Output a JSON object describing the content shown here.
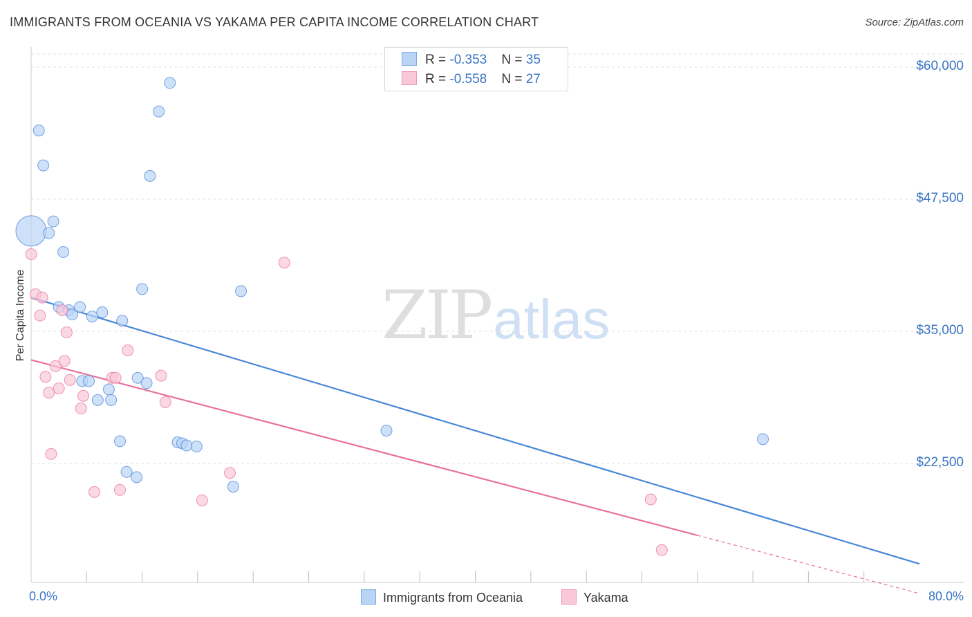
{
  "header": {
    "title": "IMMIGRANTS FROM OCEANIA VS YAKAMA PER CAPITA INCOME CORRELATION CHART",
    "source": "Source: ZipAtlas.com"
  },
  "watermark": {
    "zip": "ZIP",
    "atlas": "atlas"
  },
  "stats": [
    {
      "r_label": "R = ",
      "r_value": "-0.353",
      "n_label": "N = ",
      "n_value": "35",
      "color": "#4a86d8"
    },
    {
      "r_label": "R = ",
      "r_value": "-0.558",
      "n_label": "N = ",
      "n_value": "27",
      "color": "#e8719a"
    }
  ],
  "legend": {
    "series1": "Immigrants from Oceania",
    "series2": "Yakama"
  },
  "chart_data": {
    "type": "scatter",
    "title": "IMMIGRANTS FROM OCEANIA VS YAKAMA PER CAPITA INCOME CORRELATION CHART",
    "xlabel": "",
    "ylabel": "Per Capita Income",
    "xlim": [
      0,
      80
    ],
    "ylim": [
      12000,
      62000
    ],
    "x_tick_labels": [
      "0.0%",
      "80.0%"
    ],
    "y_ticks": [
      {
        "value": 60000,
        "label": "$60,000"
      },
      {
        "value": 47500,
        "label": "$47,500"
      },
      {
        "value": 35000,
        "label": "$35,000"
      },
      {
        "value": 22500,
        "label": "$22,500"
      }
    ],
    "grid": true,
    "series": [
      {
        "name": "Immigrants from Oceania",
        "color": "#4a86d8",
        "fill": "#b9d4f5",
        "trend": {
          "x1": 0.0,
          "y1": 38200,
          "x2": 80.0,
          "y2": 13000
        },
        "points": [
          {
            "x": 0.0,
            "y": 44500,
            "big": true
          },
          {
            "x": 0.7,
            "y": 54000
          },
          {
            "x": 1.1,
            "y": 50700
          },
          {
            "x": 1.6,
            "y": 44300
          },
          {
            "x": 2.0,
            "y": 45400
          },
          {
            "x": 2.5,
            "y": 37300
          },
          {
            "x": 2.9,
            "y": 42500
          },
          {
            "x": 3.4,
            "y": 37000
          },
          {
            "x": 3.7,
            "y": 36600
          },
          {
            "x": 4.4,
            "y": 37300
          },
          {
            "x": 4.6,
            "y": 30300
          },
          {
            "x": 5.2,
            "y": 30300
          },
          {
            "x": 5.5,
            "y": 36400
          },
          {
            "x": 6.0,
            "y": 28500
          },
          {
            "x": 6.4,
            "y": 36800
          },
          {
            "x": 7.0,
            "y": 29500
          },
          {
            "x": 7.2,
            "y": 28500
          },
          {
            "x": 8.0,
            "y": 24600
          },
          {
            "x": 8.2,
            "y": 36000
          },
          {
            "x": 8.6,
            "y": 21700
          },
          {
            "x": 9.5,
            "y": 21200
          },
          {
            "x": 9.6,
            "y": 30600
          },
          {
            "x": 10.0,
            "y": 39000
          },
          {
            "x": 10.4,
            "y": 30100
          },
          {
            "x": 10.7,
            "y": 49700
          },
          {
            "x": 11.5,
            "y": 55800
          },
          {
            "x": 12.5,
            "y": 58500
          },
          {
            "x": 13.2,
            "y": 24500
          },
          {
            "x": 13.6,
            "y": 24400
          },
          {
            "x": 14.0,
            "y": 24200
          },
          {
            "x": 14.9,
            "y": 24100
          },
          {
            "x": 18.2,
            "y": 20300
          },
          {
            "x": 18.9,
            "y": 38800
          },
          {
            "x": 32.0,
            "y": 25600
          },
          {
            "x": 65.9,
            "y": 24800
          }
        ]
      },
      {
        "name": "Yakama",
        "color": "#e8719a",
        "fill": "#f8c8d8",
        "trend": {
          "x1": 0.0,
          "y1": 32300,
          "x2": 60.0,
          "y2": 15700,
          "dashed_to_x": 80.0,
          "dashed_to_y": 10200
        },
        "points": [
          {
            "x": 0.0,
            "y": 42300
          },
          {
            "x": 0.4,
            "y": 38500
          },
          {
            "x": 0.8,
            "y": 36500
          },
          {
            "x": 1.0,
            "y": 38200
          },
          {
            "x": 1.3,
            "y": 30700
          },
          {
            "x": 1.6,
            "y": 29200
          },
          {
            "x": 1.8,
            "y": 23400
          },
          {
            "x": 2.2,
            "y": 31700
          },
          {
            "x": 2.5,
            "y": 29600
          },
          {
            "x": 2.8,
            "y": 37000
          },
          {
            "x": 3.0,
            "y": 32200
          },
          {
            "x": 3.2,
            "y": 34900
          },
          {
            "x": 3.5,
            "y": 30400
          },
          {
            "x": 4.5,
            "y": 27700
          },
          {
            "x": 4.7,
            "y": 28900
          },
          {
            "x": 5.7,
            "y": 19800
          },
          {
            "x": 7.3,
            "y": 30600
          },
          {
            "x": 7.6,
            "y": 30600
          },
          {
            "x": 8.0,
            "y": 20000
          },
          {
            "x": 8.7,
            "y": 33200
          },
          {
            "x": 11.7,
            "y": 30800
          },
          {
            "x": 12.1,
            "y": 28300
          },
          {
            "x": 15.4,
            "y": 19000
          },
          {
            "x": 17.9,
            "y": 21600
          },
          {
            "x": 22.8,
            "y": 41500
          },
          {
            "x": 55.8,
            "y": 19100
          },
          {
            "x": 56.8,
            "y": 14300
          }
        ]
      }
    ]
  }
}
